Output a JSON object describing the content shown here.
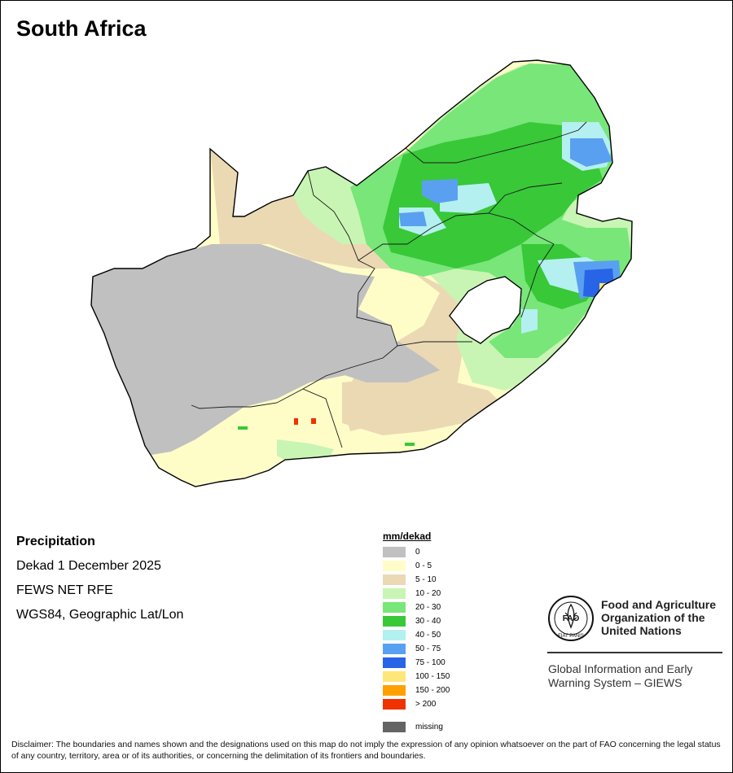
{
  "map": {
    "title": "South Africa",
    "variable": "Precipitation",
    "period": "Dekad 1 December 2025",
    "source": "FEWS NET RFE",
    "projection": "WGS84, Geographic Lat/Lon"
  },
  "legend": {
    "unit": "mm/dekad",
    "classes": [
      {
        "label": "0",
        "color": "#c0c0c0"
      },
      {
        "label": "0 - 5",
        "color": "#fefdc8"
      },
      {
        "label": "5 - 10",
        "color": "#ebd9b4"
      },
      {
        "label": "10 - 20",
        "color": "#c8f5b4"
      },
      {
        "label": "20 - 30",
        "color": "#78e678"
      },
      {
        "label": "30 - 40",
        "color": "#38c838"
      },
      {
        "label": "40 - 50",
        "color": "#b4f0f0"
      },
      {
        "label": "50 - 75",
        "color": "#5aa0f0"
      },
      {
        "label": "75 - 100",
        "color": "#2864e6"
      },
      {
        "label": "100 - 150",
        "color": "#ffe678"
      },
      {
        "label": "150 - 200",
        "color": "#ffa000"
      },
      {
        "label": "> 200",
        "color": "#f03200"
      }
    ],
    "missing": {
      "label": "missing",
      "color": "#646464"
    }
  },
  "organization": {
    "line1": "Food and Agriculture",
    "line2": "Organization of the",
    "line3": "United Nations",
    "logo_text": "FAO",
    "logo_motto": "FIAT PANIS"
  },
  "giews": {
    "line1": "Global Information and Early",
    "line2": "Warning System – GIEWS"
  },
  "disclaimer": "Disclaimer: The boundaries and names shown and the designations used on this map do not imply the expression of any opinion whatsoever on the part of FAO concerning the legal status of any country, territory, area or of its authorities, or concerning the delimitation of its frontiers and boundaries."
}
